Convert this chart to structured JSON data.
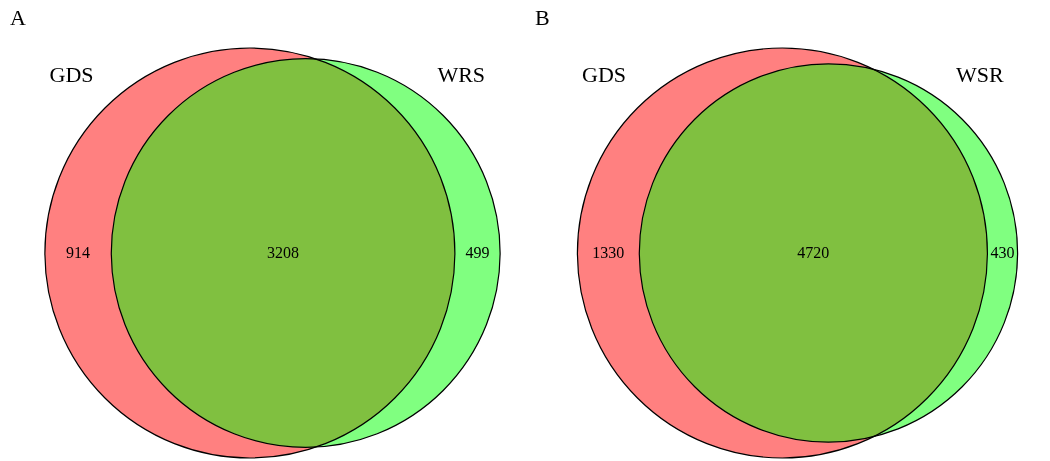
{
  "chart_data": [
    {
      "type": "other",
      "title": "A",
      "annotations": [
        "GDS",
        "WRS"
      ],
      "categories": [
        null,
        null,
        null
      ],
      "values": [
        914,
        3208,
        499
      ],
      "colors": [
        "#ff8080",
        "#80c040",
        "#80ff80"
      ],
      "data_labels": true
    },
    {
      "type": "other",
      "title": "B",
      "annotations": [
        "GDS",
        "WSR"
      ],
      "categories": [
        null,
        null,
        null
      ],
      "values": [
        1330,
        4720,
        430
      ],
      "colors": [
        "#ff8080",
        "#80c040",
        "#80ff80"
      ],
      "data_labels": true
    }
  ]
}
